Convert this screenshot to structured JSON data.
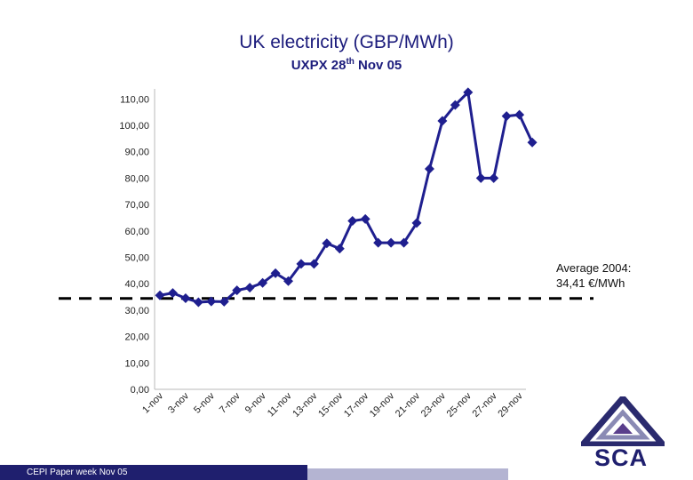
{
  "chart_data": {
    "type": "line",
    "title": "UK electricity (GBP/MWh)",
    "subtitle": {
      "prefix": "UXPX 28",
      "sup": "th",
      "suffix": " Nov 05"
    },
    "xlabel": "",
    "ylabel": "",
    "ylim": [
      0,
      110
    ],
    "yticks": [
      "0,00",
      "10,00",
      "20,00",
      "30,00",
      "40,00",
      "50,00",
      "60,00",
      "70,00",
      "80,00",
      "90,00",
      "100,00",
      "110,00"
    ],
    "categories": [
      "1-nov",
      "2-nov",
      "3-nov",
      "4-nov",
      "5-nov",
      "6-nov",
      "7-nov",
      "8-nov",
      "9-nov",
      "10-nov",
      "11-nov",
      "12-nov",
      "13-nov",
      "14-nov",
      "15-nov",
      "16-nov",
      "17-nov",
      "18-nov",
      "19-nov",
      "20-nov",
      "21-nov",
      "22-nov",
      "23-nov",
      "24-nov",
      "25-nov",
      "26-nov",
      "27-nov",
      "28-nov",
      "29-nov",
      "30-nov"
    ],
    "xtick_labels": [
      "1-nov",
      "3-nov",
      "5-nov",
      "7-nov",
      "9-nov",
      "11-nov",
      "13-nov",
      "15-nov",
      "17-nov",
      "19-nov",
      "21-nov",
      "23-nov",
      "25-nov",
      "27-nov",
      "29-nov"
    ],
    "series": [
      {
        "name": "UK electricity",
        "color": "#1f1f8f",
        "values": [
          35.6,
          36.5,
          34.5,
          33.0,
          33.3,
          33.2,
          37.5,
          38.5,
          40.3,
          44.0,
          41.0,
          47.5,
          47.5,
          55.3,
          53.3,
          63.8,
          64.5,
          55.5,
          55.5,
          55.5,
          63.0,
          83.5,
          101.7,
          107.7,
          112.5,
          80.0,
          80.0,
          103.5,
          104.0,
          93.5
        ]
      }
    ],
    "reference_line": {
      "value": 34.41,
      "style": "dashed",
      "color": "#000000"
    },
    "grid": false
  },
  "annotation": {
    "line1": "Average 2004:",
    "line2": "34,41 €/MWh"
  },
  "footer": {
    "text": "CEPI Paper week Nov 05"
  },
  "logo": {
    "text": "SCA",
    "colors": {
      "outer": "#2a2a6e",
      "inner": "#8a8ab4",
      "accent": "#5a3e8c"
    }
  }
}
